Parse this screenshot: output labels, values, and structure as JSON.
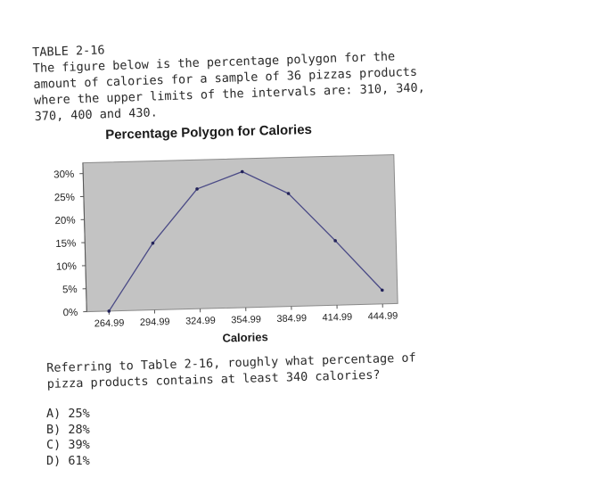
{
  "header": {
    "table_label": "TABLE 2-16",
    "intro_lines": [
      "The figure below is the percentage polygon for the",
      "amount of calories for a sample of 36 pizzas products",
      "where the upper limits of the intervals are: 310, 340,",
      "370, 400 and 430."
    ]
  },
  "question": {
    "lines": [
      "Referring to Table 2-16, roughly what percentage of",
      "pizza products contains at least 340 calories?"
    ],
    "options": [
      "A) 25%",
      "B) 28%",
      "C) 39%",
      "D) 61%"
    ]
  },
  "chart_data": {
    "type": "line",
    "title": "Percentage Polygon for Calories",
    "xlabel": "Calories",
    "ylabel": "",
    "x": [
      "264.99",
      "294.99",
      "324.99",
      "354.99",
      "384.99",
      "414.99",
      "444.99"
    ],
    "y_ticks": [
      "0%",
      "5%",
      "10%",
      "15%",
      "20%",
      "25%",
      "30%"
    ],
    "ylim": [
      0,
      30
    ],
    "series": [
      {
        "values": [
          0,
          14.5,
          26,
          29.5,
          24.5,
          14,
          3
        ]
      }
    ],
    "grid": false,
    "plot_background": "#c3c3c3",
    "line_color": "#4a4a86"
  }
}
